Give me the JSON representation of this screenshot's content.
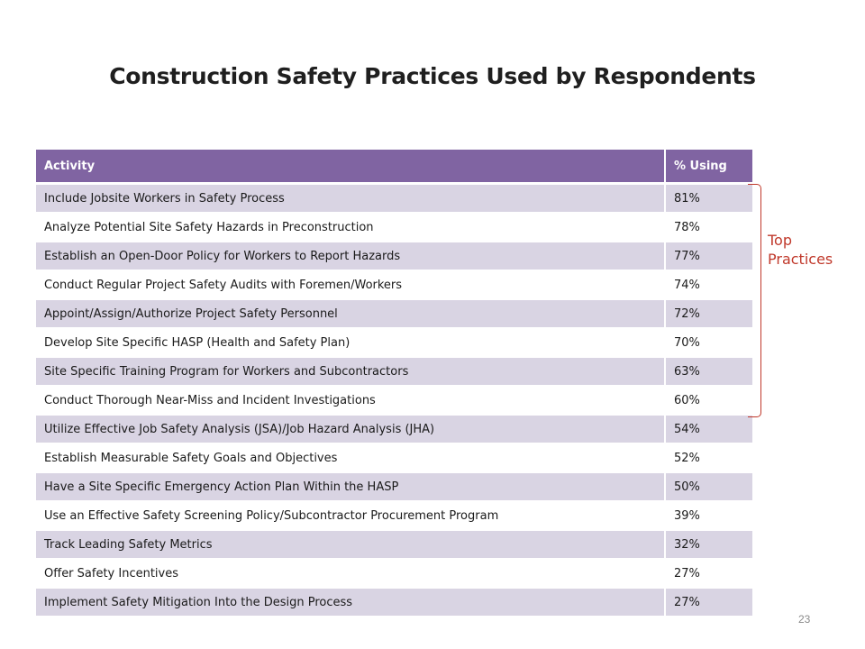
{
  "slide": {
    "title": "Construction Safety Practices Used by Respondents",
    "page_number": "23"
  },
  "table": {
    "headers": {
      "activity": "Activity",
      "percent": "% Using"
    },
    "rows": [
      {
        "activity": "Include Jobsite Workers in Safety Process",
        "percent": "81%"
      },
      {
        "activity": "Analyze Potential Site Safety Hazards in Preconstruction",
        "percent": "78%"
      },
      {
        "activity": "Establish an Open-Door Policy for Workers to Report Hazards",
        "percent": "77%"
      },
      {
        "activity": "Conduct Regular Project Safety Audits with Foremen/Workers",
        "percent": "74%"
      },
      {
        "activity": "Appoint/Assign/Authorize Project Safety Personnel",
        "percent": "72%"
      },
      {
        "activity": "Develop Site Specific HASP (Health and Safety Plan)",
        "percent": "70%"
      },
      {
        "activity": "Site Specific Training Program for Workers and Subcontractors",
        "percent": "63%"
      },
      {
        "activity": "Conduct Thorough Near-Miss and Incident Investigations",
        "percent": "60%"
      },
      {
        "activity": "Utilize Effective Job Safety Analysis (JSA)/Job Hazard Analysis (JHA)",
        "percent": "54%"
      },
      {
        "activity": "Establish Measurable Safety Goals and Objectives",
        "percent": "52%"
      },
      {
        "activity": "Have a Site Specific Emergency Action Plan Within the HASP",
        "percent": "50%"
      },
      {
        "activity": "Use an Effective Safety Screening Policy/Subcontractor Procurement Program",
        "percent": "39%"
      },
      {
        "activity": "Track Leading Safety Metrics",
        "percent": "32%"
      },
      {
        "activity": "Offer Safety Incentives",
        "percent": "27%"
      },
      {
        "activity": "Implement Safety Mitigation Into the Design Process",
        "percent": "27%"
      }
    ]
  },
  "annotation": {
    "label_line1": "Top",
    "label_line2": "Practices",
    "color": "#c0392b"
  },
  "colors": {
    "header_bg": "#8064a2",
    "band_bg": "#d9d4e3"
  }
}
